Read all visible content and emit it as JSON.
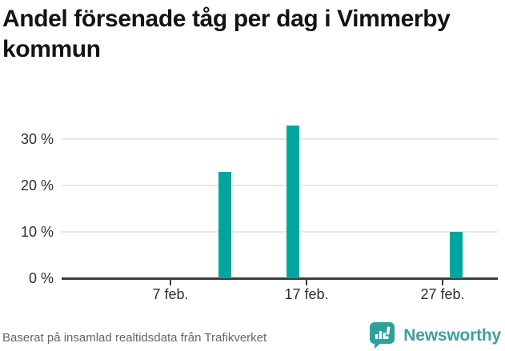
{
  "title": "Andel försenade tåg per dag i Vimmerby kommun",
  "footer": {
    "source": "Baserat på insamlad realtidsdata från Trafikverket",
    "brand": "Newsworthy"
  },
  "colors": {
    "bar": "#00a69e",
    "brand_icon": "#2da19a",
    "brand_text": "#3f9f9b",
    "axis": "#3c3c3c",
    "grid": "#e7e7e7"
  },
  "chart_data": {
    "type": "bar",
    "title": "Andel försenade tåg per dag i Vimmerby kommun",
    "xlabel": "",
    "ylabel": "",
    "unit": "%",
    "ylim": [
      0,
      35
    ],
    "grid": "horizontal",
    "legend": "none",
    "y_tick_labels": [
      "0 %",
      "10 %",
      "20 %",
      "30 %"
    ],
    "x_tick_labels": [
      "7 feb.",
      "17 feb.",
      "27 feb."
    ],
    "bars": [
      {
        "x": "11 feb.",
        "value": 23
      },
      {
        "x": "16 feb.",
        "value": 33
      },
      {
        "x": "28 feb.",
        "value": 10
      }
    ]
  }
}
